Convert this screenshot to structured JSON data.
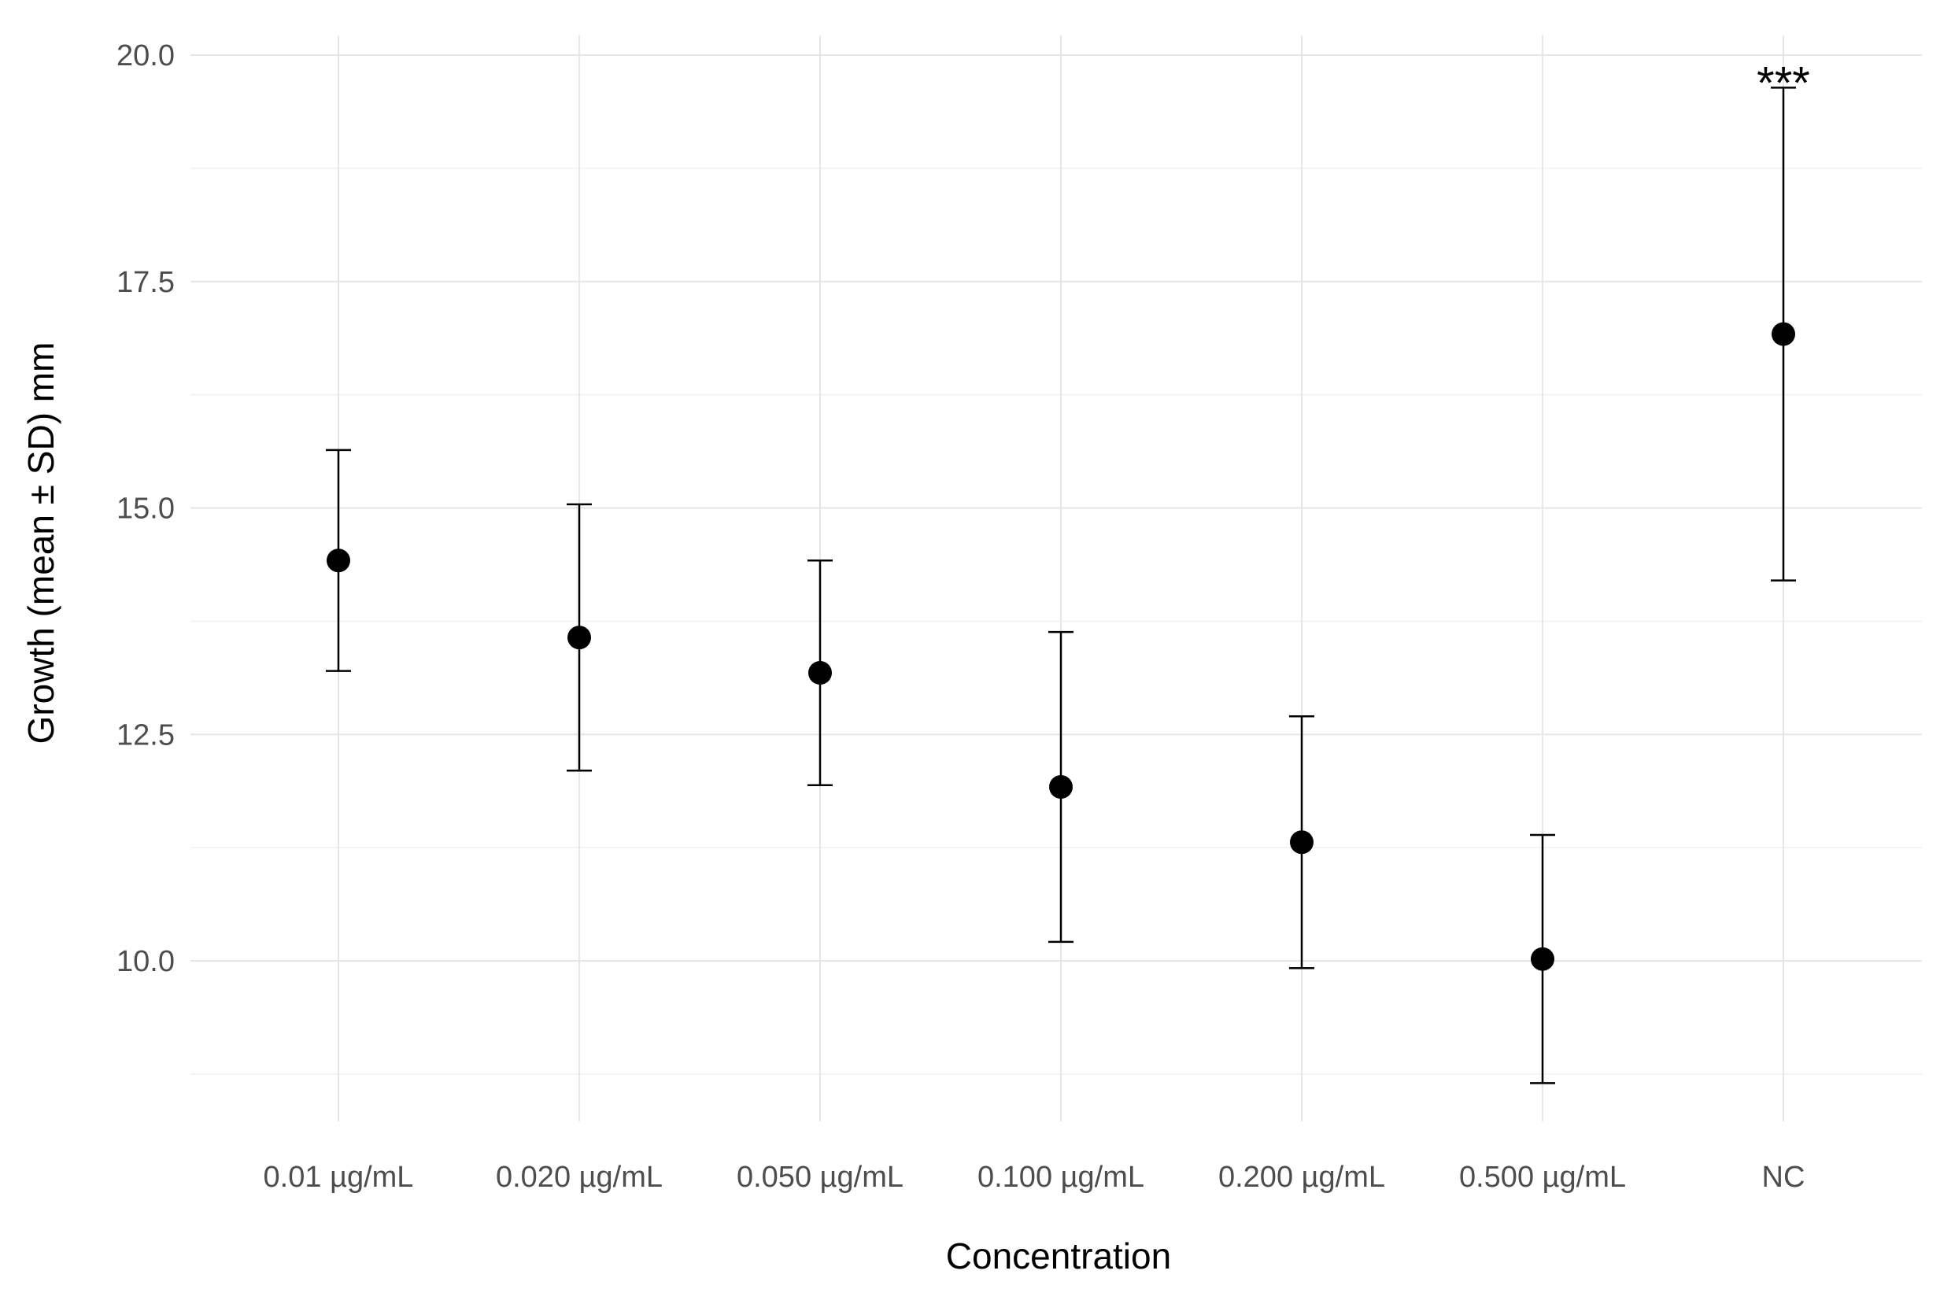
{
  "chart_data": {
    "type": "scatter",
    "subtype": "point-with-error-bars",
    "title": "",
    "xlabel": "Concentration",
    "ylabel": "Growth (mean ± SD) mm",
    "categories": [
      "0.01 µg/mL",
      "0.020 µg/mL",
      "0.050 µg/mL",
      "0.100 µg/mL",
      "0.200 µg/mL",
      "0.500 µg/mL",
      "NC"
    ],
    "series": [
      {
        "values": [
          14.42,
          13.57,
          13.18,
          11.92,
          11.31,
          10.02,
          16.92
        ],
        "sd": [
          1.22,
          1.47,
          1.24,
          1.71,
          1.39,
          1.37,
          2.72
        ]
      }
    ],
    "ylim": [
      8.1,
      20.4
    ],
    "yticks": [
      "10.0",
      "12.5",
      "15.0",
      "17.5",
      "20.0"
    ],
    "ytick_values": [
      10.0,
      12.5,
      15.0,
      17.5,
      20.0
    ],
    "grid": true,
    "legend": "none",
    "annotations": [
      {
        "category": "NC",
        "text": "***"
      }
    ],
    "colors": {
      "points": "#000000",
      "grid": "#e6e6e6"
    }
  }
}
